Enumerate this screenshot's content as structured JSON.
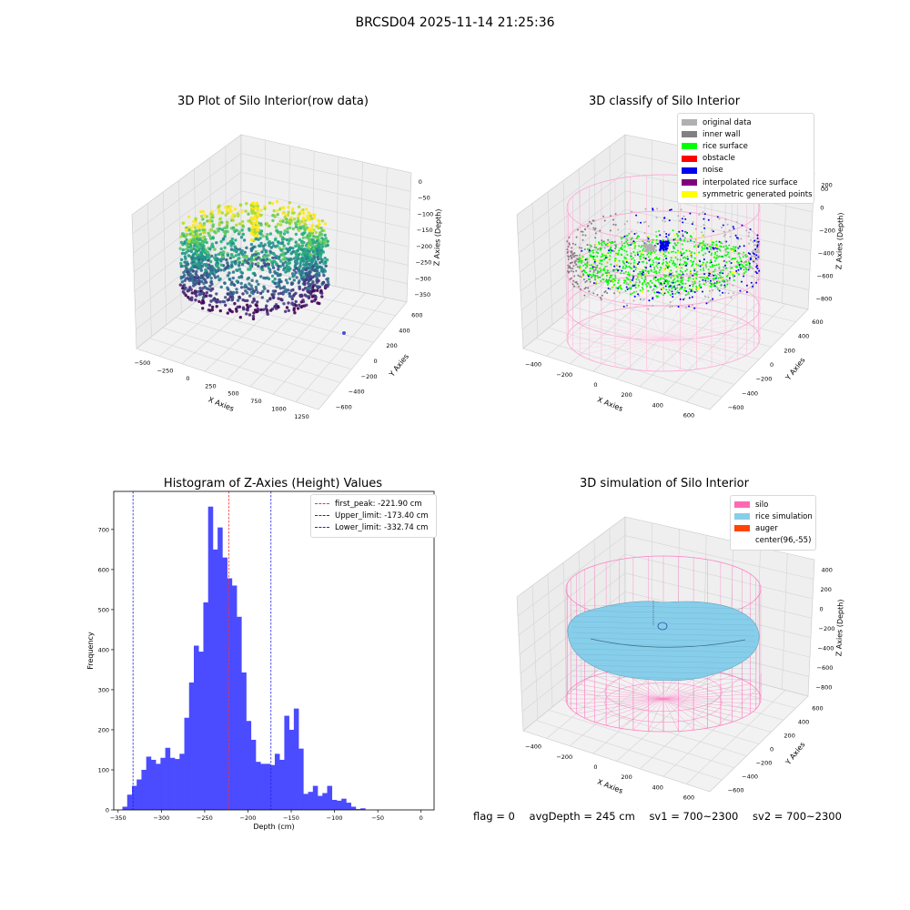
{
  "figure": {
    "title": "BRCSD04 2025-11-14 21:25:36"
  },
  "colors": {
    "histogram_bar": "#4b4bff",
    "first_peak_line": "#ff3030",
    "limit_lines": "#2020ee",
    "pane": "#f2f2f2",
    "grid": "#dcdcdc"
  },
  "chart_data": [
    {
      "type": "scatter",
      "title": "3D Plot of Silo Interior(row data)",
      "projection": "3d",
      "xlabel": "X Axies",
      "ylabel": "Y Axies",
      "zlabel": "Z Axies (Depth)",
      "x_ticks": [
        "−500",
        "−250",
        "0",
        "250",
        "500",
        "750",
        "1000",
        "1250"
      ],
      "y_ticks": [
        "−600",
        "−400",
        "−200",
        "0",
        "200",
        "400",
        "600"
      ],
      "z_ticks": [
        "0",
        "−50",
        "−100",
        "−150",
        "−200",
        "−250",
        "−300",
        "−350"
      ],
      "colormap": "viridis",
      "outlier_point": {
        "color": "#4b4bdd"
      }
    },
    {
      "type": "scatter",
      "title": "3D classify of Silo Interior",
      "projection": "3d",
      "xlabel": "X Axies",
      "ylabel": "Y Axies",
      "zlabel": "Z Axies (Depth)",
      "x_ticks": [
        "−400",
        "−200",
        "0",
        "200",
        "400",
        "600"
      ],
      "y_ticks": [
        "−600",
        "−400",
        "−200",
        "0",
        "200",
        "400",
        "600"
      ],
      "z_ticks": [
        "200",
        "0",
        "−200",
        "−400",
        "−600",
        "−800"
      ],
      "z_ticks_partial_top": "00",
      "legend_position": "top-right",
      "legend": [
        {
          "label": "original data",
          "color": "#b0b0b0"
        },
        {
          "label": "inner wall",
          "color": "#808080"
        },
        {
          "label": "rice surface",
          "color": "#00ff00"
        },
        {
          "label": "obstacle",
          "color": "#ff0000"
        },
        {
          "label": "noise",
          "color": "#0000ee"
        },
        {
          "label": "interpolated rice surface",
          "color": "#800080"
        },
        {
          "label": "symmetric generated points",
          "color": "#ffff00"
        }
      ]
    },
    {
      "type": "bar",
      "subtype": "histogram",
      "title": "Histogram of Z-Axies (Height) Values",
      "xlabel": "Depth (cm)",
      "ylabel": "Frequency",
      "xlim": [
        -355,
        15
      ],
      "ylim": [
        0,
        795
      ],
      "x_ticks": [
        -350,
        -300,
        -250,
        -200,
        -150,
        -100,
        -50,
        0
      ],
      "x_tick_labels": [
        "−350",
        "−300",
        "−250",
        "−200",
        "−150",
        "−100",
        "−50",
        "0"
      ],
      "y_ticks": [
        0,
        100,
        200,
        300,
        400,
        500,
        600,
        700
      ],
      "y_tick_labels": [
        "0",
        "100",
        "200",
        "300",
        "400",
        "500",
        "600",
        "700"
      ],
      "bin_start": -345,
      "bin_width": 5.5,
      "values": [
        8,
        38,
        60,
        76,
        100,
        133,
        125,
        115,
        130,
        155,
        130,
        127,
        140,
        230,
        318,
        410,
        395,
        518,
        757,
        650,
        705,
        630,
        578,
        560,
        482,
        343,
        222,
        175,
        120,
        115,
        115,
        112,
        140,
        125,
        235,
        200,
        253,
        153,
        40,
        45,
        60,
        35,
        42,
        60,
        25,
        23,
        28,
        18,
        8,
        2,
        4
      ],
      "ref_lines": [
        {
          "x": -221.9,
          "label": "first_peak: -221.90 cm",
          "color": "#ff3030"
        },
        {
          "x": -173.4,
          "label": "Upper_limit: -173.40 cm",
          "color": "#2020ee"
        },
        {
          "x": -332.74,
          "label": "Lower_limit: -332.74 cm",
          "color": "#2020ee"
        }
      ],
      "legend_position": "top-right",
      "grid": false
    },
    {
      "type": "scatter",
      "title": "3D simulation of Silo Interior",
      "projection": "3d",
      "xlabel": "X Axies",
      "ylabel": "Y Axies",
      "zlabel": "Z Axies (Depth)",
      "x_ticks": [
        "−400",
        "−200",
        "0",
        "200",
        "400",
        "600"
      ],
      "y_ticks": [
        "−600",
        "−400",
        "−200",
        "0",
        "200",
        "400",
        "600"
      ],
      "z_ticks": [
        "400",
        "200",
        "0",
        "−200",
        "−400",
        "−600",
        "−800"
      ],
      "legend_position": "top-right",
      "legend": [
        {
          "label": "silo",
          "color": "#ff69b4"
        },
        {
          "label": "rice simulation",
          "color": "#87ceeb"
        },
        {
          "label": "auger",
          "color": "#ff4500"
        },
        {
          "label": "center(96,-55)",
          "color": ""
        }
      ]
    }
  ],
  "footer": {
    "flag": "flag = 0",
    "avg_depth": "avgDepth = 245 cm",
    "sv1": "sv1 = 700~2300",
    "sv2": "sv2 = 700~2300"
  }
}
